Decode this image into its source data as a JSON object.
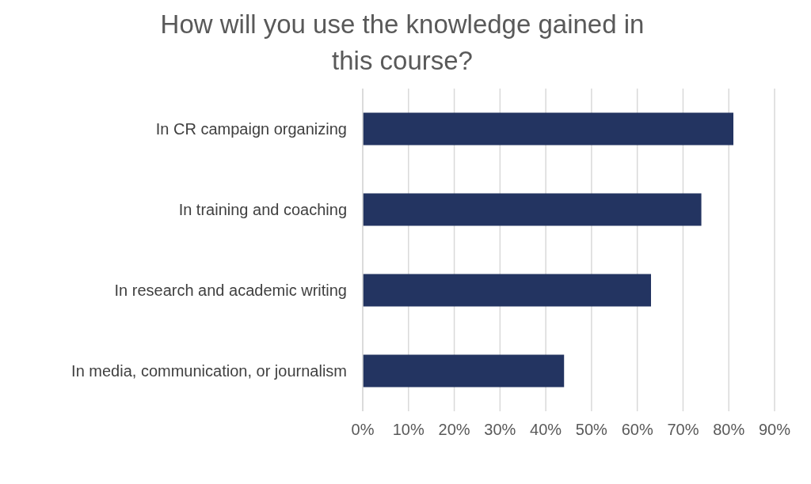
{
  "chart_data": {
    "type": "bar",
    "orientation": "horizontal",
    "title": "How will you use the knowledge gained in this course?",
    "categories": [
      "In CR campaign organizing",
      "In training and coaching",
      "In research and academic writing",
      "In media, communication, or journalism"
    ],
    "values": [
      81,
      74,
      63,
      44
    ],
    "color": "#233461",
    "xlim": [
      0,
      90
    ],
    "xticks": [
      {
        "value": 0,
        "label": "0%"
      },
      {
        "value": 10,
        "label": "10%"
      },
      {
        "value": 20,
        "label": "20%"
      },
      {
        "value": 30,
        "label": "30%"
      },
      {
        "value": 40,
        "label": "40%"
      },
      {
        "value": 50,
        "label": "50%"
      },
      {
        "value": 60,
        "label": "60%"
      },
      {
        "value": 70,
        "label": "70%"
      },
      {
        "value": 80,
        "label": "80%"
      },
      {
        "value": 90,
        "label": "90%"
      }
    ],
    "grid": "x"
  }
}
